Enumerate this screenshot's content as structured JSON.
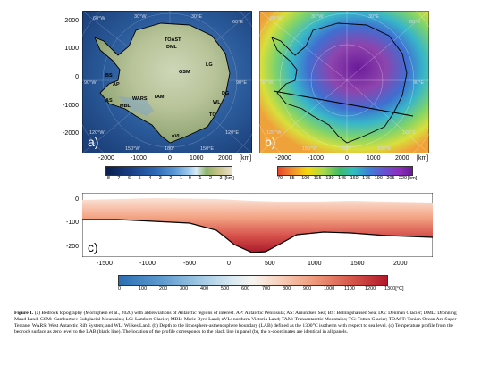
{
  "panel_a": {
    "letter": "a)",
    "y_ticks": [
      "2000",
      "1000",
      "0",
      "-1000",
      "-2000"
    ],
    "x_ticks": [
      "-2000",
      "-1000",
      "0",
      "1000",
      "2000"
    ],
    "x_unit": "[km]",
    "lon_labels": [
      "60°W",
      "30°W",
      "30°E",
      "60°E",
      "90°W",
      "90°E",
      "120°W",
      "120°E",
      "150°W",
      "180°",
      "150°E"
    ],
    "region_labels": [
      "TOAST",
      "DML",
      "GSM",
      "LG",
      "BS",
      "AP",
      "AS",
      "MBL",
      "WARS",
      "TAM",
      "WL",
      "DG",
      "TG",
      "nVL"
    ],
    "colorbar_ticks": [
      "-8",
      "-7",
      "-6",
      "-5",
      "-4",
      "-3",
      "-2",
      "-1",
      "0",
      "1",
      "2",
      "3"
    ],
    "colorbar_unit": "[km]"
  },
  "panel_b": {
    "letter": "b)",
    "x_ticks": [
      "-2000",
      "-1000",
      "0",
      "1000",
      "2000"
    ],
    "x_unit": "[km]",
    "lon_labels": [
      "60°W",
      "30°W",
      "30°E",
      "60°E",
      "90°W",
      "90°E",
      "120°W",
      "120°E",
      "150°W",
      "180°",
      "150°E"
    ],
    "colorbar_ticks": [
      "70",
      "85",
      "100",
      "115",
      "130",
      "145",
      "160",
      "175",
      "190",
      "205",
      "220"
    ],
    "colorbar_unit": "[km]"
  },
  "panel_c": {
    "letter": "c)",
    "y_ticks": [
      "0",
      "-100",
      "-200"
    ],
    "x_ticks": [
      "-1500",
      "-1000",
      "-500",
      "0",
      "500",
      "1000",
      "1500",
      "2000"
    ],
    "colorbar_ticks": [
      "0",
      "100",
      "200",
      "300",
      "400",
      "500",
      "600",
      "700",
      "800",
      "900",
      "1000",
      "1100",
      "1200",
      "1300"
    ],
    "colorbar_unit": "[°C]"
  },
  "caption": {
    "label": "Figure 1.",
    "text": " (a) Bedrock topography (Morlighem et al., 2020) with abbreviations of Antarctic regions of interest. AP: Antarctic Peninsula; AS: Amundsen Sea; BS: Bellingshausen Sea; DG: Denman Glacier; DML: Dronning Maud Land; GSM: Gamburtsev Subglacial Mountains; LG: Lambert Glacier; MBL: Marie Byrd Land; nVL: northern Victoria Land; TAM: Transantarctic Mountains; TG: Totten Glacier; TOAST: Tonian Ocean Arc Super Terrane; WARS: West Antarctic Rift System; and WL: Wilkes Land. (b) Depth to the lithosphere-asthenosphere boundary (LAB) defined as the 1300°C isotherm with respect to sea level. (c) Temperature profile from the bedrock surface as zero level to the LAB (black line). The location of the profile corresponds to the black line in panel (b), the x-coordinates are identical in all panels."
  },
  "colors": {
    "ocean": "#1f4f8f",
    "lab_low": "#7b1fa2",
    "lab_high": "#f5d90a",
    "temp_cold": "#2c6fb3",
    "temp_hot": "#b2182b"
  }
}
